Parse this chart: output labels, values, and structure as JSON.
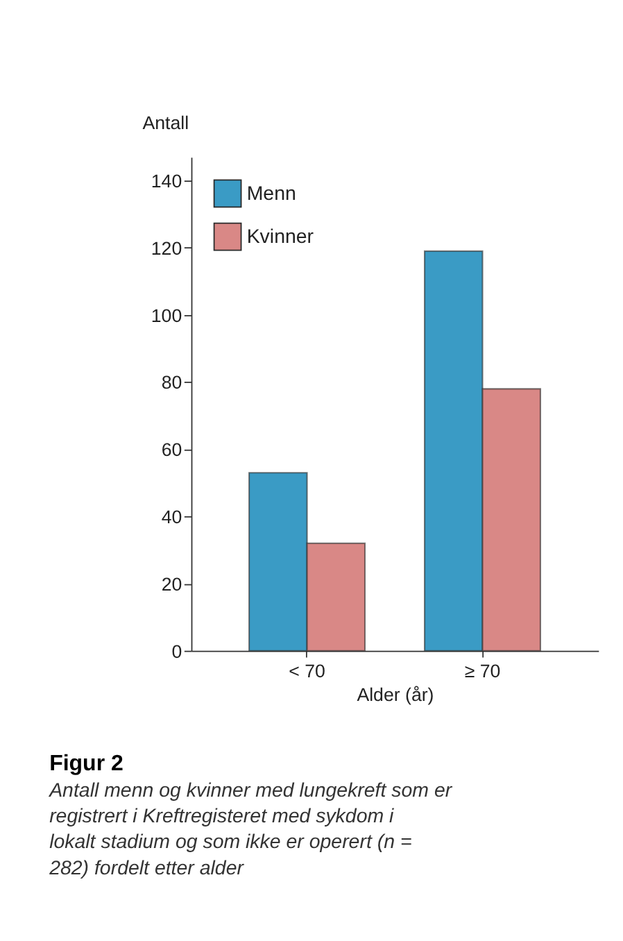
{
  "chart_data": {
    "type": "bar",
    "title": "Figur 2",
    "subtitle": "Antall menn og kvinner med lungekreft som er registrert i Kreftregisteret med sykdom i lokalt stadium og som ikke er operert (n = 282) fordelt etter alder",
    "xlabel": "Alder (år)",
    "ylabel": "Antall",
    "categories": [
      "< 70",
      "≥ 70"
    ],
    "series": [
      {
        "name": "Menn",
        "color": "#3a9bc5",
        "values": [
          53,
          119
        ]
      },
      {
        "name": "Kvinner",
        "color": "#d98886",
        "values": [
          32,
          78
        ]
      }
    ],
    "ylim": [
      0,
      147
    ],
    "yticks": [
      0,
      20,
      40,
      60,
      80,
      100,
      120,
      140
    ],
    "grid": false,
    "legend": "top left"
  }
}
